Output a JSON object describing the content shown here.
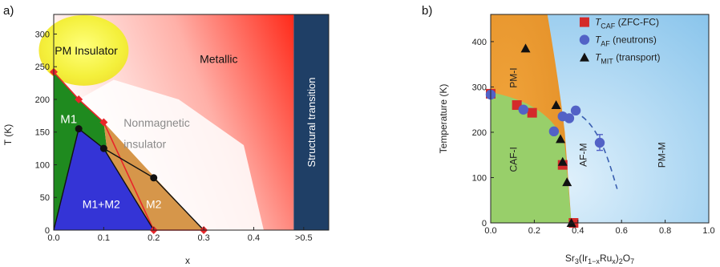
{
  "chart_data": [
    {
      "panel_label": "a)",
      "type": "area",
      "xlabel": "x",
      "ylabel": "T (K)",
      "xlim": [
        0.0,
        0.55
      ],
      "ylim": [
        0,
        330
      ],
      "xticks": [
        "0.0",
        "0.1",
        "0.2",
        "0.3",
        "0.4",
        ">0.5"
      ],
      "xtick_values": [
        0.0,
        0.1,
        0.2,
        0.3,
        0.4,
        0.5
      ],
      "yticks": [
        0,
        50,
        100,
        150,
        200,
        250,
        300
      ],
      "regions": [
        {
          "label": "PM Insulator",
          "color": "#f4f03c"
        },
        {
          "label": "Metallic",
          "color": "#ff2a1a"
        },
        {
          "label": "M1",
          "color": "#1f8a1f"
        },
        {
          "label": "Nonmagnetic insulator",
          "color": "#8a8a8a"
        },
        {
          "label": "M1+M2",
          "color": "#3434d6"
        },
        {
          "label": "M2",
          "color": "#d6964a"
        },
        {
          "label": "Structural transition",
          "color": "#1f3f66"
        }
      ],
      "boundary_points": [
        {
          "x": 0.0,
          "y": 242
        },
        {
          "x": 0.05,
          "y": 200
        },
        {
          "x": 0.1,
          "y": 165
        },
        {
          "x": 0.2,
          "y": 0
        },
        {
          "x": 0.3,
          "y": 0
        }
      ],
      "inner_points": [
        {
          "x": 0.05,
          "y": 155
        },
        {
          "x": 0.1,
          "y": 125
        },
        {
          "x": 0.2,
          "y": 80
        }
      ]
    },
    {
      "panel_label": "b)",
      "type": "scatter",
      "xlabel": "Sr3(Ir1−xRux)2O7",
      "ylabel": "Temperature (K)",
      "xlim": [
        0.0,
        1.0
      ],
      "ylim": [
        0,
        460
      ],
      "xticks": [
        "0.0",
        "0.2",
        "0.4",
        "0.6",
        "0.8",
        "1.0"
      ],
      "xtick_values": [
        0.0,
        0.2,
        0.4,
        0.6,
        0.8,
        1.0
      ],
      "yticks": [
        0,
        100,
        200,
        300,
        400
      ],
      "regions": [
        {
          "label": "PM-I",
          "color": "#e9962a"
        },
        {
          "label": "CAF-I",
          "color": "#98cf6a"
        },
        {
          "label": "AF-M",
          "color": "#a9d3f0"
        },
        {
          "label": "PM-M",
          "color": "#b8dcf4"
        }
      ],
      "series": [
        {
          "name": "T_CAF (ZFC-FC)",
          "marker": "square",
          "color": "#d42a2a",
          "points": [
            {
              "x": 0.0,
              "y": 285
            },
            {
              "x": 0.12,
              "y": 260
            },
            {
              "x": 0.19,
              "y": 243
            },
            {
              "x": 0.33,
              "y": 128
            },
            {
              "x": 0.38,
              "y": 0
            }
          ]
        },
        {
          "name": "T_AF (neutrons)",
          "marker": "circle",
          "color": "#5262c6",
          "points": [
            {
              "x": 0.0,
              "y": 283
            },
            {
              "x": 0.15,
              "y": 250
            },
            {
              "x": 0.29,
              "y": 202
            },
            {
              "x": 0.33,
              "y": 235
            },
            {
              "x": 0.36,
              "y": 231
            },
            {
              "x": 0.39,
              "y": 248
            },
            {
              "x": 0.5,
              "y": 177
            }
          ]
        },
        {
          "name": "T_MIT (transport)",
          "marker": "triangle",
          "color": "#111111",
          "points": [
            {
              "x": 0.16,
              "y": 385
            },
            {
              "x": 0.3,
              "y": 260
            },
            {
              "x": 0.32,
              "y": 185
            },
            {
              "x": 0.33,
              "y": 135
            },
            {
              "x": 0.35,
              "y": 90
            },
            {
              "x": 0.37,
              "y": 0
            }
          ]
        }
      ]
    }
  ]
}
